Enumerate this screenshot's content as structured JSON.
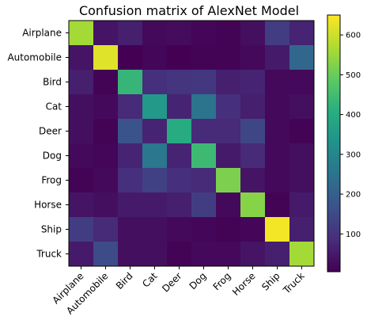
{
  "chart_data": {
    "type": "heatmap",
    "title": "Confusion matrix of AlexNet Model",
    "xlabel": "",
    "ylabel": "",
    "x_categories": [
      "Airplane",
      "Automobile",
      "Bird",
      "Cat",
      "Deer",
      "Dog",
      "Frog",
      "Horse",
      "Ship",
      "Truck"
    ],
    "y_categories": [
      "Airplane",
      "Automobile",
      "Bird",
      "Cat",
      "Deer",
      "Dog",
      "Frog",
      "Horse",
      "Ship",
      "Truck"
    ],
    "values": [
      [
        560,
        40,
        60,
        20,
        25,
        15,
        10,
        30,
        120,
        70
      ],
      [
        40,
        620,
        5,
        15,
        5,
        10,
        10,
        20,
        50,
        220
      ],
      [
        60,
        10,
        430,
        90,
        100,
        110,
        60,
        70,
        20,
        20
      ],
      [
        30,
        20,
        80,
        350,
        70,
        250,
        90,
        60,
        20,
        30
      ],
      [
        30,
        10,
        170,
        70,
        400,
        80,
        80,
        140,
        20,
        10
      ],
      [
        20,
        15,
        70,
        260,
        70,
        440,
        50,
        80,
        20,
        30
      ],
      [
        10,
        20,
        90,
        130,
        90,
        80,
        520,
        40,
        20,
        30
      ],
      [
        40,
        30,
        50,
        50,
        60,
        120,
        20,
        530,
        10,
        50
      ],
      [
        120,
        80,
        30,
        30,
        20,
        15,
        10,
        15,
        640,
        60
      ],
      [
        50,
        150,
        30,
        30,
        10,
        20,
        20,
        40,
        60,
        560
      ]
    ],
    "colorbar": {
      "min": 5,
      "max": 650,
      "ticks": [
        100,
        200,
        300,
        400,
        500,
        600
      ],
      "colormap": "viridis"
    },
    "grid": false,
    "legend": "colorbar-right"
  }
}
